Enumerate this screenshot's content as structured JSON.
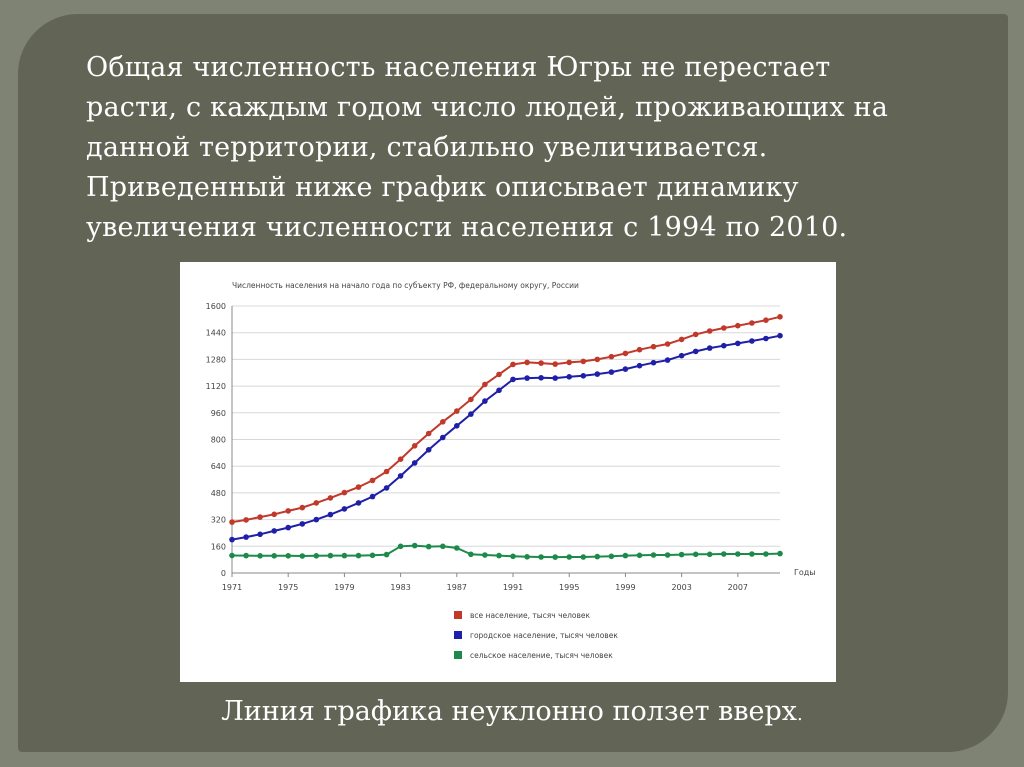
{
  "intro_lines": [
    "Общая численность населения Югры не перестает",
    "расти, с каждым годом число людей, проживающих на",
    "данной территории, стабильно увеличивается.",
    "Приведенный ниже график описывает динамику",
    "увеличения численности населения с 1994 по 2010."
  ],
  "caption": "Линия графика неуклонно ползет вверх",
  "caption_dot": ".",
  "chart_data": {
    "type": "line",
    "title": "Численность населения на начало года по субъекту РФ, федеральному округу, России",
    "xlabel": "Годы",
    "ylabel": "",
    "xlim": [
      1971,
      2010
    ],
    "ylim": [
      0,
      1600
    ],
    "x_ticks": [
      1971,
      1975,
      1979,
      1983,
      1987,
      1991,
      1995,
      1999,
      2003,
      2007
    ],
    "y_ticks": [
      0,
      160,
      320,
      480,
      640,
      800,
      960,
      1120,
      1280,
      1440,
      1600
    ],
    "grid": true,
    "legend_position": "bottom-center",
    "x": [
      1971,
      1972,
      1973,
      1974,
      1975,
      1976,
      1977,
      1978,
      1979,
      1980,
      1981,
      1982,
      1983,
      1984,
      1985,
      1986,
      1987,
      1988,
      1989,
      1990,
      1991,
      1992,
      1993,
      1994,
      1995,
      1996,
      1997,
      1998,
      1999,
      2000,
      2001,
      2002,
      2003,
      2004,
      2005,
      2006,
      2007,
      2008,
      2009,
      2010
    ],
    "series": [
      {
        "name": "все население, тысяч человек",
        "color": "#c0392b",
        "values": [
          305,
          318,
          335,
          352,
          372,
          392,
          420,
          450,
          482,
          515,
          555,
          608,
          682,
          762,
          836,
          906,
          970,
          1040,
          1130,
          1190,
          1250,
          1262,
          1258,
          1252,
          1262,
          1268,
          1280,
          1296,
          1316,
          1338,
          1356,
          1372,
          1400,
          1430,
          1450,
          1468,
          1482,
          1498,
          1515,
          1535
        ]
      },
      {
        "name": "городское население, тысяч человек",
        "color": "#1f1fa8",
        "values": [
          200,
          215,
          232,
          252,
          272,
          294,
          320,
          350,
          384,
          420,
          458,
          510,
          582,
          660,
          738,
          812,
          882,
          952,
          1030,
          1095,
          1160,
          1168,
          1170,
          1168,
          1176,
          1182,
          1192,
          1204,
          1222,
          1242,
          1260,
          1276,
          1302,
          1328,
          1348,
          1362,
          1376,
          1390,
          1405,
          1422
        ]
      },
      {
        "name": "сельское население, тысяч человек",
        "color": "#1e8a4a",
        "values": [
          105,
          104,
          103,
          103,
          103,
          102,
          103,
          104,
          104,
          104,
          106,
          110,
          160,
          164,
          158,
          160,
          150,
          112,
          108,
          104,
          100,
          97,
          96,
          95,
          96,
          96,
          98,
          100,
          104,
          106,
          108,
          108,
          110,
          112,
          112,
          114,
          114,
          114,
          114,
          116
        ]
      }
    ]
  }
}
